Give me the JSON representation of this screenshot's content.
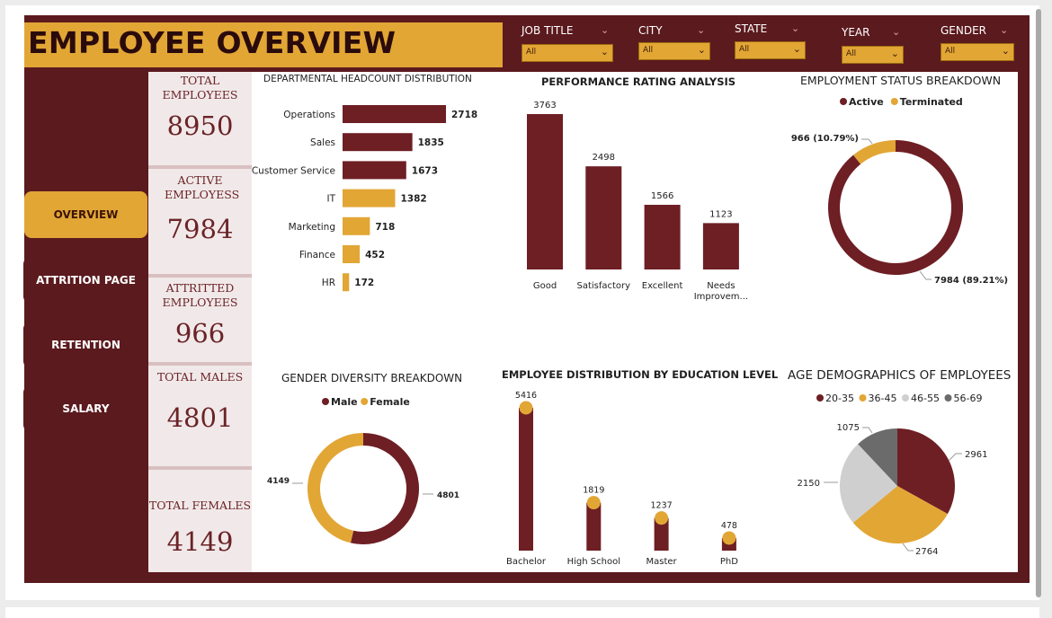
{
  "header": {
    "title": "EMPLOYEE OVERVIEW"
  },
  "filters": [
    {
      "label": "JOB TITLE",
      "value": "All"
    },
    {
      "label": "CITY",
      "value": "All"
    },
    {
      "label": "STATE",
      "value": "All"
    },
    {
      "label": "YEAR",
      "value": "All"
    },
    {
      "label": "GENDER",
      "value": "All"
    }
  ],
  "nav": {
    "overview": "OVERVIEW",
    "attrition": "ATTRITION PAGE",
    "retention": "RETENTION",
    "salary": "SALARY"
  },
  "kpis": [
    {
      "label": "TOTAL EMPLOYEES",
      "value": "8950"
    },
    {
      "label": "ACTIVE EMPLOYESS",
      "value": "7984"
    },
    {
      "label": "ATTRITTED EMPLOYEES",
      "value": "966"
    },
    {
      "label": "TOTAL MALES",
      "value": "4801"
    },
    {
      "label": "TOTAL FEMALES",
      "value": "4149"
    }
  ],
  "colors": {
    "maroon": "#6e1f24",
    "gold": "#e2a635",
    "light_gray": "#cfcfcf",
    "dark_gray": "#6b6b6b"
  },
  "chart_data": [
    {
      "type": "bar",
      "orientation": "horizontal",
      "title": "DEPARTMENTAL HEADCOUNT DISTRIBUTION",
      "categories": [
        "Operations",
        "Sales",
        "Customer Service",
        "IT",
        "Marketing",
        "Finance",
        "HR"
      ],
      "values": [
        2718,
        1835,
        1673,
        1382,
        718,
        452,
        172
      ],
      "bar_colors": [
        "#6e1f24",
        "#6e1f24",
        "#6e1f24",
        "#e2a635",
        "#e2a635",
        "#e2a635",
        "#e2a635"
      ]
    },
    {
      "type": "bar",
      "title": "PERFORMANCE RATING ANALYSIS",
      "categories": [
        "Good",
        "Satisfactory",
        "Excellent",
        "Needs Improvem..."
      ],
      "values": [
        3763,
        2498,
        1566,
        1123
      ]
    },
    {
      "type": "pie",
      "style": "donut",
      "title": "EMPLOYMENT STATUS BREAKDOWN",
      "legend": [
        "Active",
        "Terminated"
      ],
      "slices": [
        {
          "name": "Active",
          "value": 7984,
          "label": "7984 (89.21%)",
          "color": "#6e1f24"
        },
        {
          "name": "Terminated",
          "value": 966,
          "label": "966 (10.79%)",
          "color": "#e2a635"
        }
      ]
    },
    {
      "type": "pie",
      "style": "donut",
      "title": "GENDER DIVERSITY BREAKDOWN",
      "legend": [
        "Male",
        "Female"
      ],
      "slices": [
        {
          "name": "Male",
          "value": 4801,
          "label": "4801",
          "color": "#6e1f24"
        },
        {
          "name": "Female",
          "value": 4149,
          "label": "4149",
          "color": "#e2a635"
        }
      ]
    },
    {
      "type": "bar",
      "style": "lollipop",
      "title": "EMPLOYEE DISTRIBUTION BY EDUCATION LEVEL",
      "categories": [
        "Bachelor",
        "High School",
        "Master",
        "PhD"
      ],
      "values": [
        5416,
        1819,
        1237,
        478
      ]
    },
    {
      "type": "pie",
      "title": "AGE DEMOGRAPHICS OF EMPLOYEES",
      "legend": [
        "20-35",
        "36-45",
        "46-55",
        "56-69"
      ],
      "slices": [
        {
          "name": "20-35",
          "value": 2961,
          "label": "2961",
          "color": "#6e1f24"
        },
        {
          "name": "36-45",
          "value": 2764,
          "label": "2764",
          "color": "#e2a635"
        },
        {
          "name": "46-55",
          "value": 2150,
          "label": "2150",
          "color": "#cfcfcf"
        },
        {
          "name": "56-69",
          "value": 1075,
          "label": "1075",
          "color": "#6b6b6b"
        }
      ]
    }
  ]
}
